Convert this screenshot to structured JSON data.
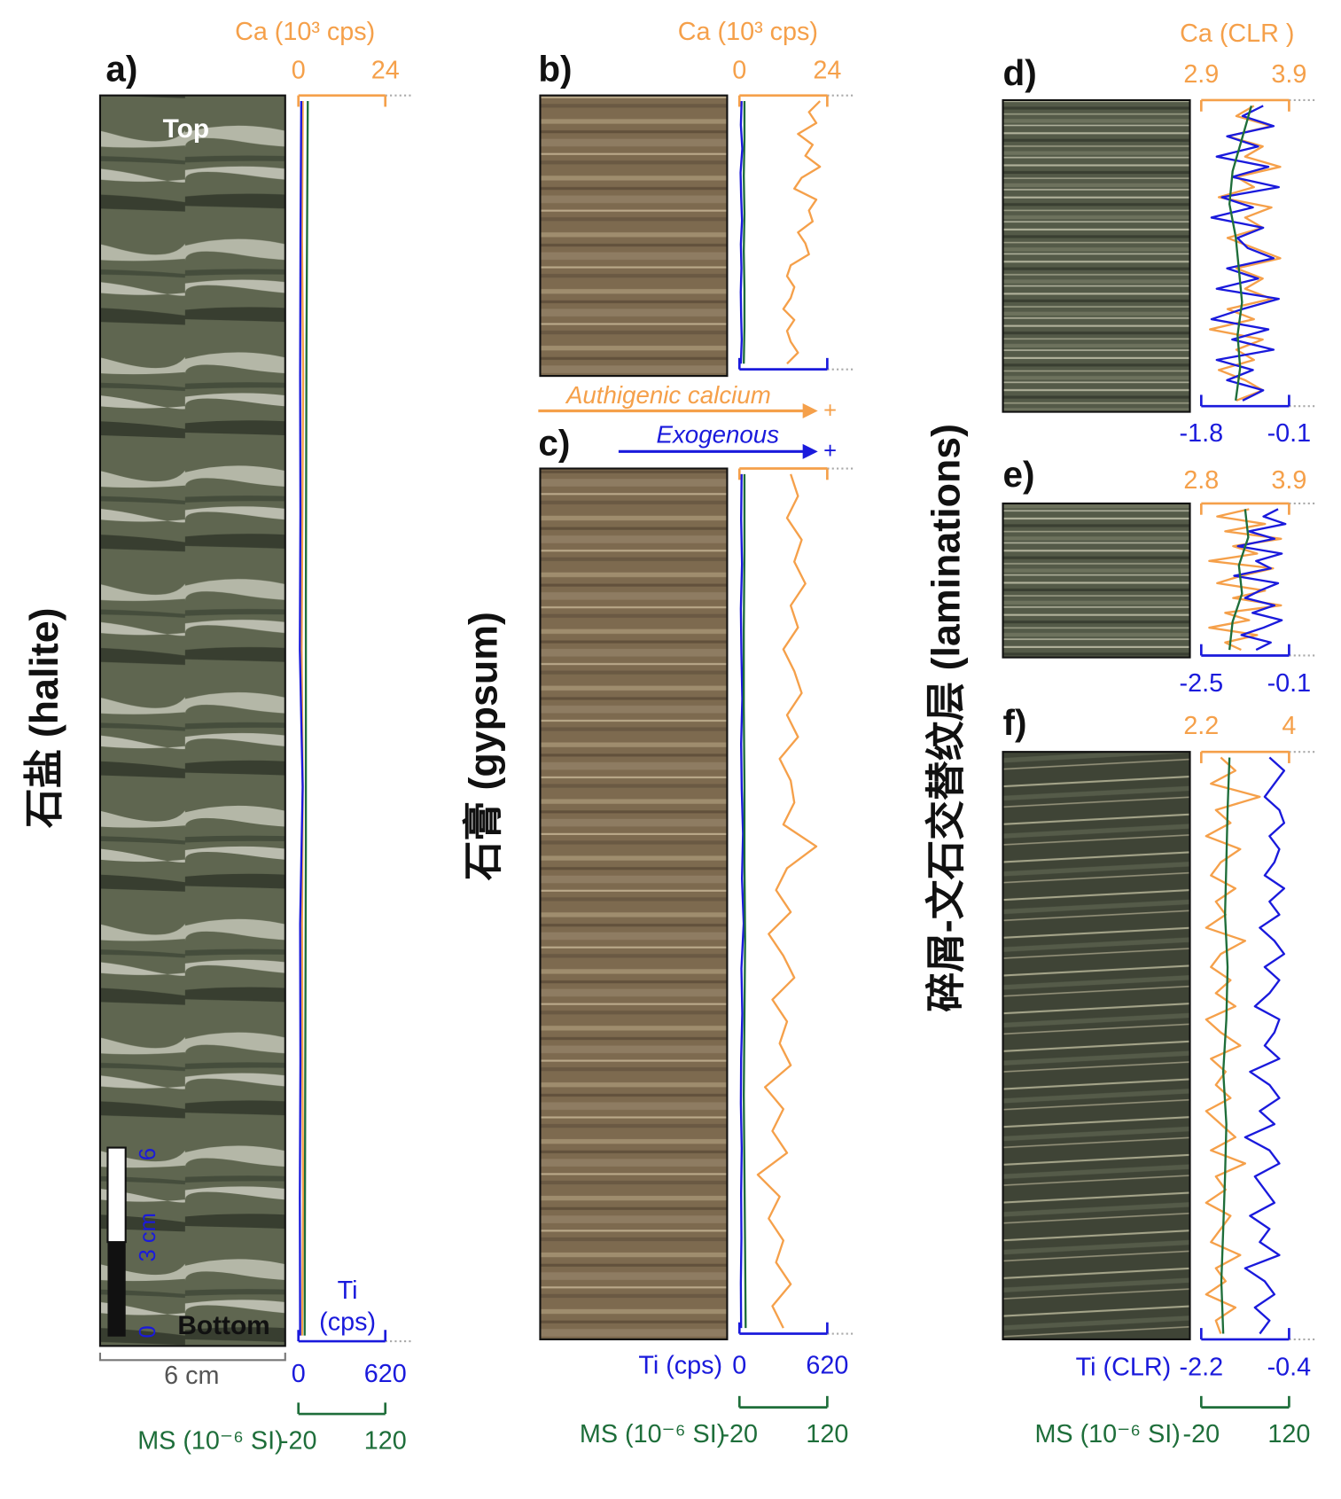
{
  "chart_data": [
    {
      "type": "line",
      "label": "a)",
      "axes": {
        "ca": {
          "title": "Ca (10³ cps)",
          "lim": [
            0,
            24
          ],
          "ticks": [
            0,
            24
          ]
        },
        "ti": {
          "title_lines": [
            "Ti",
            "(cps)"
          ],
          "lim": [
            0,
            620
          ],
          "ticks": [
            0,
            620
          ]
        },
        "ms": {
          "title": "MS (10⁻⁶ SI)",
          "lim": [
            -20,
            120
          ],
          "ticks": [
            -20,
            120
          ]
        }
      },
      "series": [
        {
          "axis": "ca",
          "color": "#f5a04a",
          "values": [
            1.2,
            1.0,
            1.3,
            1.1,
            0.9,
            1.2,
            1.0,
            1.1,
            1.3,
            1.0
          ]
        },
        {
          "axis": "ti",
          "color": "#1a1adc",
          "values": [
            20,
            15,
            12,
            14,
            10,
            30,
            12,
            14,
            10,
            12
          ]
        },
        {
          "axis": "ms",
          "color": "#1e6e3a",
          "values": [
            -5,
            -7,
            -8,
            -8,
            -9,
            -10
          ]
        }
      ]
    },
    {
      "type": "line",
      "label": "b)",
      "axes": {
        "ca": {
          "title": "Ca (10³ cps)",
          "lim": [
            0,
            24
          ],
          "ticks": [
            0,
            24
          ]
        },
        "ti": {
          "lim": [
            0,
            620
          ]
        },
        "ms": {
          "lim": [
            -20,
            120
          ]
        }
      },
      "series": [
        {
          "axis": "ca",
          "color": "#f5a04a",
          "values": [
            22,
            19,
            21,
            16,
            20,
            18,
            22,
            17,
            15,
            21,
            19,
            20,
            16,
            18,
            19,
            14,
            13,
            15,
            14,
            12,
            15,
            13,
            14,
            16,
            13
          ]
        },
        {
          "axis": "ti",
          "color": "#1a1adc",
          "values": [
            15,
            10,
            20,
            8,
            12,
            18,
            10,
            14,
            9,
            12,
            16,
            10
          ]
        },
        {
          "axis": "ms",
          "color": "#1e6e3a",
          "values": [
            -12,
            -12,
            -13,
            -12,
            -13,
            -12,
            -12,
            -13
          ]
        }
      ]
    },
    {
      "type": "line",
      "label": "c)",
      "axes": {
        "ca": {
          "lim": [
            0,
            24
          ]
        },
        "ti": {
          "title": "Ti (cps)",
          "lim": [
            0,
            620
          ],
          "ticks": [
            0,
            620
          ]
        },
        "ms": {
          "title": "MS (10⁻⁶ SI)",
          "lim": [
            -20,
            120
          ],
          "ticks": [
            -20,
            120
          ]
        }
      },
      "series": [
        {
          "axis": "ca",
          "color": "#f5a04a",
          "values": [
            14,
            16,
            13,
            17,
            15,
            18,
            14,
            16,
            12,
            15,
            17,
            13,
            16,
            11,
            14,
            15,
            12,
            21,
            13,
            10,
            14,
            8,
            12,
            15,
            9,
            13,
            11,
            14,
            7,
            12,
            9,
            13,
            5,
            11,
            8,
            12,
            10,
            14,
            9,
            12
          ]
        },
        {
          "axis": "ti",
          "color": "#1a1adc",
          "values": [
            15,
            12,
            18,
            10,
            14,
            20,
            12,
            16,
            25,
            18,
            30,
            14,
            20,
            12,
            10,
            16,
            12,
            14,
            10,
            12
          ]
        },
        {
          "axis": "ms",
          "color": "#1e6e3a",
          "values": [
            -12,
            -12,
            -13,
            -13,
            -12,
            -12,
            -11,
            -12,
            -13,
            -12,
            -11,
            -10
          ]
        }
      ]
    },
    {
      "type": "line",
      "label": "d)",
      "axes": {
        "ca": {
          "title": "Ca (CLR )",
          "lim": [
            2.9,
            3.9
          ],
          "ticks": [
            2.9,
            3.9
          ]
        },
        "ti": {
          "lim": [
            -1.8,
            -0.1
          ],
          "ticks": [
            -1.8,
            -0.1
          ]
        },
        "ms": {
          "lim": [
            -20,
            120
          ]
        }
      },
      "series": [
        {
          "axis": "ca",
          "color": "#f5a04a",
          "values": [
            3.5,
            3.3,
            3.7,
            3.2,
            3.6,
            3.4,
            3.8,
            3.3,
            3.5,
            3.1,
            3.7,
            3.4,
            3.6,
            3.2,
            3.5,
            3.8,
            3.3,
            3.6,
            3.4,
            3.7,
            3.2,
            3.5,
            3.0,
            3.6,
            3.3,
            3.5,
            3.1,
            3.4,
            3.6,
            3.3
          ]
        },
        {
          "axis": "ti",
          "color": "#1a1adc",
          "values": [
            -0.6,
            -1.0,
            -0.4,
            -1.3,
            -0.7,
            -1.5,
            -0.5,
            -1.2,
            -0.3,
            -1.4,
            -0.8,
            -1.6,
            -0.6,
            -1.1,
            -0.9,
            -0.4,
            -1.3,
            -0.7,
            -1.5,
            -0.3,
            -1.0,
            -1.6,
            -0.5,
            -1.2,
            -0.4,
            -1.5,
            -0.8,
            -1.3,
            -0.6,
            -1.0
          ]
        },
        {
          "axis": "ms",
          "color": "#1e6e3a",
          "values": [
            60,
            45,
            30,
            25,
            35,
            40,
            45,
            38,
            42,
            35
          ]
        }
      ]
    },
    {
      "type": "line",
      "label": "e)",
      "axes": {
        "ca": {
          "lim": [
            2.8,
            3.9
          ],
          "ticks": [
            2.8,
            3.9
          ]
        },
        "ti": {
          "lim": [
            -2.5,
            -0.1
          ],
          "ticks": [
            -2.5,
            -0.1
          ]
        },
        "ms": {
          "lim": [
            -20,
            120
          ]
        }
      },
      "series": [
        {
          "axis": "ca",
          "color": "#f5a04a",
          "values": [
            3.4,
            3.0,
            3.6,
            3.1,
            3.8,
            3.2,
            3.5,
            2.9,
            3.7,
            3.3,
            3.0,
            3.6,
            3.2,
            3.8,
            3.1,
            3.4,
            2.9,
            3.5,
            3.1,
            3.3
          ]
        },
        {
          "axis": "ti",
          "color": "#1a1adc",
          "values": [
            -0.4,
            -0.8,
            -0.2,
            -1.2,
            -0.5,
            -1.5,
            -0.3,
            -1.0,
            -0.6,
            -1.6,
            -0.4,
            -0.9,
            -1.3,
            -0.5,
            -1.1,
            -0.3,
            -0.8,
            -1.4,
            -0.6,
            -1.0
          ]
        },
        {
          "axis": "ms",
          "color": "#1e6e3a",
          "values": [
            50,
            55,
            40,
            45,
            30,
            25
          ]
        }
      ]
    },
    {
      "type": "line",
      "label": "f)",
      "axes": {
        "ca": {
          "lim": [
            2.2,
            4
          ],
          "ticks": [
            2.2,
            4
          ]
        },
        "ti": {
          "title": "Ti (CLR)",
          "lim": [
            -2.2,
            -0.4
          ],
          "ticks": [
            -2.2,
            -0.4
          ]
        },
        "ms": {
          "title": "MS (10⁻⁶ SI)",
          "lim": [
            -20,
            120
          ],
          "ticks": [
            -20,
            120
          ]
        }
      },
      "series": [
        {
          "axis": "ca",
          "color": "#f5a04a",
          "values": [
            2.6,
            2.9,
            2.4,
            3.4,
            2.5,
            2.8,
            2.3,
            3.0,
            2.6,
            2.4,
            2.9,
            2.5,
            2.7,
            2.3,
            3.1,
            2.6,
            2.4,
            2.8,
            2.5,
            2.9,
            2.3,
            2.6,
            3.0,
            2.4,
            2.7,
            2.5,
            2.8,
            2.3,
            2.6,
            2.9,
            2.4,
            3.1,
            2.5,
            2.7,
            2.3,
            2.8,
            2.6,
            2.4,
            3.0,
            2.5,
            2.7,
            2.3,
            2.9,
            2.5,
            2.6
          ]
        },
        {
          "axis": "ti",
          "color": "#1a1adc",
          "values": [
            -0.8,
            -0.5,
            -0.7,
            -0.9,
            -0.6,
            -0.5,
            -0.8,
            -0.6,
            -0.7,
            -0.9,
            -0.5,
            -0.8,
            -0.6,
            -1.0,
            -0.7,
            -0.5,
            -0.9,
            -0.6,
            -0.8,
            -1.1,
            -0.6,
            -0.7,
            -0.9,
            -0.6,
            -1.2,
            -0.8,
            -0.6,
            -1.0,
            -0.7,
            -1.3,
            -0.8,
            -0.6,
            -1.1,
            -0.9,
            -0.7,
            -1.2,
            -0.8,
            -1.0,
            -0.6,
            -1.3,
            -0.9,
            -0.7,
            -1.1,
            -0.8,
            -1.0
          ]
        },
        {
          "axis": "ms",
          "color": "#1e6e3a",
          "values": [
            25,
            22,
            20,
            18,
            22,
            20,
            15,
            20,
            18,
            15,
            12,
            15
          ]
        }
      ]
    }
  ],
  "annotations": {
    "side_labels": [
      "石盐 (halite)",
      "石膏 (gypsum)",
      "碎屑-文石交替纹层 (laminations)"
    ],
    "top": "Top",
    "bottom": "Bottom",
    "core_width": "6 cm",
    "scale_labels": [
      "0",
      "3 cm",
      "6"
    ],
    "authigenic": "Authigenic calcium",
    "exogenous": "Exogenous",
    "plus": "+"
  }
}
